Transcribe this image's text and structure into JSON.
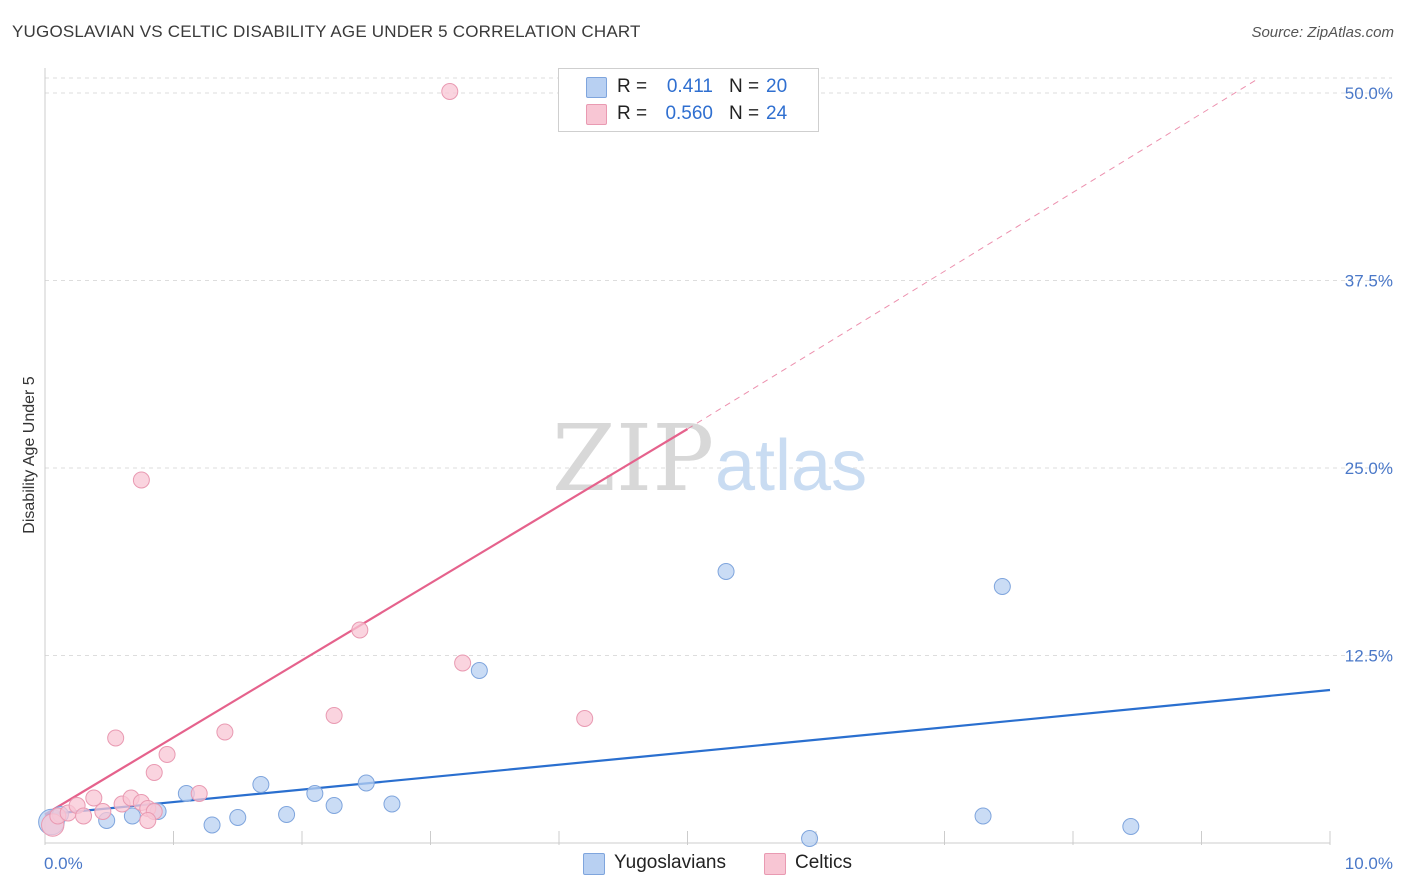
{
  "title": "YUGOSLAVIAN VS CELTIC DISABILITY AGE UNDER 5 CORRELATION CHART",
  "source": "Source: ZipAtlas.com",
  "watermark": {
    "zip": "ZIP",
    "atlas": "atlas"
  },
  "legend": {
    "r_label": "R =",
    "n_label": "N =",
    "rows": [
      {
        "r": "0.411",
        "n": "20"
      },
      {
        "r": "0.560",
        "n": "24"
      }
    ]
  },
  "colors": {
    "blue_fill": "#b8d0f2",
    "blue_stroke": "#7fa5dd",
    "blue_line": "#2a6fcf",
    "pink_fill": "#f8c6d4",
    "pink_stroke": "#e99ab2",
    "pink_line": "#e5628c"
  },
  "chart_data": {
    "type": "scatter",
    "title": "YUGOSLAVIAN VS CELTIC DISABILITY AGE UNDER 5 CORRELATION CHART",
    "xlabel": "",
    "ylabel": "Disability Age Under 5",
    "xlim": [
      0,
      10
    ],
    "ylim": [
      0,
      51
    ],
    "x_tick_labels": [
      "0.0%",
      "10.0%"
    ],
    "y_ticks": [
      12.5,
      25.0,
      37.5,
      50.0
    ],
    "y_tick_labels": [
      "12.5%",
      "25.0%",
      "37.5%",
      "50.0%"
    ],
    "grid": true,
    "legend_position": "top-center",
    "series": [
      {
        "name": "Yugoslavians",
        "color": "blue",
        "points": [
          {
            "x": 0.05,
            "y": 1.4,
            "s": 1.6
          },
          {
            "x": 0.12,
            "y": 1.9,
            "s": 1.0
          },
          {
            "x": 0.48,
            "y": 1.5,
            "s": 1.0
          },
          {
            "x": 0.68,
            "y": 1.8,
            "s": 1.0
          },
          {
            "x": 0.88,
            "y": 2.1,
            "s": 1.0
          },
          {
            "x": 1.1,
            "y": 3.3,
            "s": 1.0
          },
          {
            "x": 1.3,
            "y": 1.2,
            "s": 1.0
          },
          {
            "x": 1.5,
            "y": 1.7,
            "s": 1.0
          },
          {
            "x": 1.68,
            "y": 3.9,
            "s": 1.0
          },
          {
            "x": 1.88,
            "y": 1.9,
            "s": 1.0
          },
          {
            "x": 2.1,
            "y": 3.3,
            "s": 1.0
          },
          {
            "x": 2.25,
            "y": 2.5,
            "s": 1.0
          },
          {
            "x": 2.5,
            "y": 4.0,
            "s": 1.0
          },
          {
            "x": 2.7,
            "y": 2.6,
            "s": 1.0
          },
          {
            "x": 3.38,
            "y": 11.5,
            "s": 1.0
          },
          {
            "x": 5.3,
            "y": 18.1,
            "s": 1.0
          },
          {
            "x": 5.95,
            "y": 0.3,
            "s": 1.0
          },
          {
            "x": 7.3,
            "y": 1.8,
            "s": 1.0
          },
          {
            "x": 7.45,
            "y": 17.1,
            "s": 1.0
          },
          {
            "x": 8.45,
            "y": 1.1,
            "s": 1.0
          }
        ],
        "trend": {
          "x": [
            0,
            10
          ],
          "y": [
            1.9,
            10.2
          ],
          "style": "solid"
        }
      },
      {
        "name": "Celtics",
        "color": "pink",
        "points": [
          {
            "x": 0.06,
            "y": 1.2,
            "s": 1.4
          },
          {
            "x": 0.1,
            "y": 1.8,
            "s": 1.0
          },
          {
            "x": 0.18,
            "y": 2.0,
            "s": 1.0
          },
          {
            "x": 0.25,
            "y": 2.5,
            "s": 1.0
          },
          {
            "x": 0.3,
            "y": 1.8,
            "s": 1.0
          },
          {
            "x": 0.38,
            "y": 3.0,
            "s": 1.0
          },
          {
            "x": 0.45,
            "y": 2.1,
            "s": 1.0
          },
          {
            "x": 0.55,
            "y": 7.0,
            "s": 1.0
          },
          {
            "x": 0.6,
            "y": 2.6,
            "s": 1.0
          },
          {
            "x": 0.67,
            "y": 3.0,
            "s": 1.0
          },
          {
            "x": 0.75,
            "y": 2.7,
            "s": 1.0
          },
          {
            "x": 0.8,
            "y": 2.3,
            "s": 1.0
          },
          {
            "x": 0.85,
            "y": 2.1,
            "s": 1.0
          },
          {
            "x": 0.75,
            "y": 24.2,
            "s": 1.0
          },
          {
            "x": 0.8,
            "y": 1.5,
            "s": 1.0
          },
          {
            "x": 0.85,
            "y": 4.7,
            "s": 1.0
          },
          {
            "x": 0.95,
            "y": 5.9,
            "s": 1.0
          },
          {
            "x": 1.2,
            "y": 3.3,
            "s": 1.0
          },
          {
            "x": 1.4,
            "y": 7.4,
            "s": 1.0
          },
          {
            "x": 2.25,
            "y": 8.5,
            "s": 1.0
          },
          {
            "x": 2.45,
            "y": 14.2,
            "s": 1.0
          },
          {
            "x": 3.15,
            "y": 50.1,
            "s": 1.0
          },
          {
            "x": 3.25,
            "y": 12.0,
            "s": 1.0
          },
          {
            "x": 4.2,
            "y": 8.3,
            "s": 1.0
          }
        ],
        "trend": {
          "x": [
            0,
            5.0
          ],
          "y": [
            1.9,
            27.6
          ],
          "style": "solid",
          "extension": {
            "x": [
              5.0,
              9.45
            ],
            "y": [
              27.6,
              51.0
            ],
            "style": "dashed"
          }
        }
      }
    ]
  },
  "bottom_legend": [
    "Yugoslavians",
    "Celtics"
  ]
}
